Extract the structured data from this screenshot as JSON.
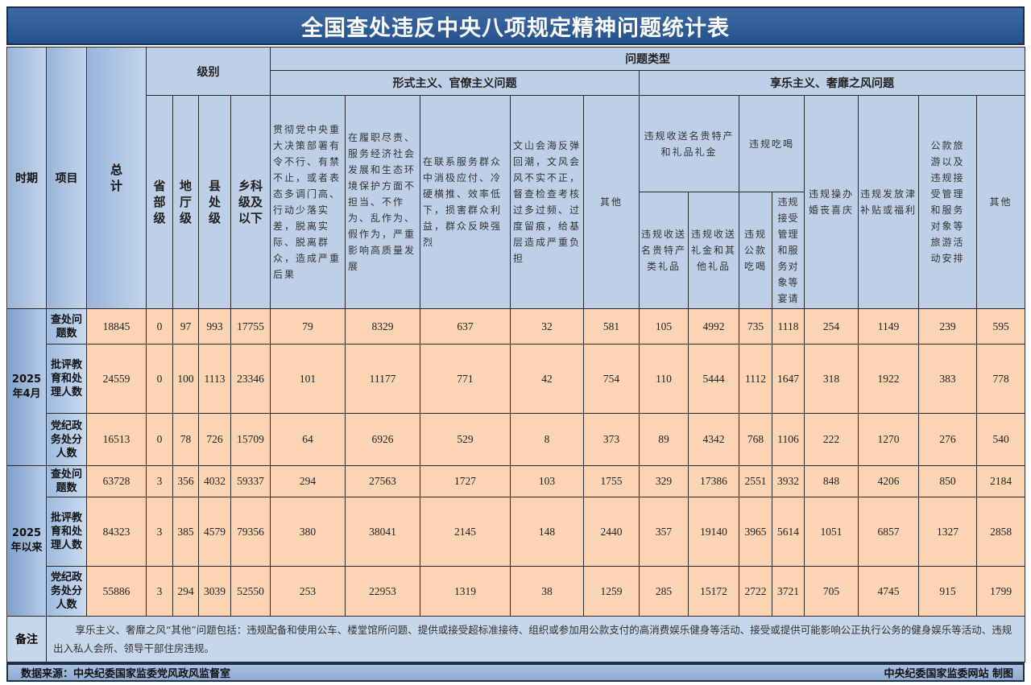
{
  "title": "全国查处违反中央八项规定精神问题统计表",
  "headers": {
    "period": "时期",
    "item": "项目",
    "total": "总计",
    "level": "级别",
    "levels": [
      "省部级",
      "地厅级",
      "县处级",
      "乡科级及以下"
    ],
    "problem_type": "问题类型",
    "formalism": "形式主义、官僚主义问题",
    "formalism_cols": [
      "贯彻党中央重大决策部署有令不行、有禁不止，或者表态多调门高、行动少落实差，脱离实际、脱离群众，造成严重后果",
      "在履职尽责、服务经济社会发展和生态环境保护方面不担当、不作为、乱作为、假作为，严重影响高质量发展",
      "在联系服务群众中消极应付、冷硬横推、效率低下，损害群众利益，群众反映强烈",
      "文山会海反弹回潮，文风会风不实不正，督查检查考核过多过频、过度留痕，给基层造成严重负担",
      "其他"
    ],
    "hedonism": "享乐主义、奢靡之风问题",
    "gifts": "违规收送名贵特产和礼品礼金",
    "gifts_sub": [
      "违规收送名贵特产类礼品",
      "违规收送礼金和其他礼品"
    ],
    "dining": "违规吃喝",
    "dining_sub": [
      "违规公款吃喝",
      "违规接受管理和服务对象等宴请"
    ],
    "hedonism_cols": [
      "违规操办婚丧喜庆",
      "违规发放津补贴或福利",
      "公款旅游以及违规接受管理和服务对象等旅游活动安排",
      "其他"
    ]
  },
  "periods": [
    {
      "label": "2025年4月",
      "rows": [
        {
          "item": "查处问题数",
          "values": [
            "18845",
            "0",
            "97",
            "993",
            "17755",
            "79",
            "8329",
            "637",
            "32",
            "581",
            "105",
            "4992",
            "735",
            "1118",
            "254",
            "1149",
            "239",
            "595"
          ]
        },
        {
          "item": "批评教育和处理人数",
          "values": [
            "24559",
            "0",
            "100",
            "1113",
            "23346",
            "101",
            "11177",
            "771",
            "42",
            "754",
            "110",
            "5444",
            "1112",
            "1647",
            "318",
            "1922",
            "383",
            "778"
          ]
        },
        {
          "item": "党纪政务处分人数",
          "values": [
            "16513",
            "0",
            "78",
            "726",
            "15709",
            "64",
            "6926",
            "529",
            "8",
            "373",
            "89",
            "4342",
            "768",
            "1106",
            "222",
            "1270",
            "276",
            "540"
          ]
        }
      ]
    },
    {
      "label": "2025年以来",
      "rows": [
        {
          "item": "查处问题数",
          "values": [
            "63728",
            "3",
            "356",
            "4032",
            "59337",
            "294",
            "27563",
            "1727",
            "103",
            "1755",
            "329",
            "17386",
            "2551",
            "3932",
            "848",
            "4206",
            "850",
            "2184"
          ]
        },
        {
          "item": "批评教育和处理人数",
          "values": [
            "84323",
            "3",
            "385",
            "4579",
            "79356",
            "380",
            "38041",
            "2145",
            "148",
            "2440",
            "357",
            "19140",
            "3965",
            "5614",
            "1051",
            "6857",
            "1327",
            "2858"
          ]
        },
        {
          "item": "党纪政务处分人数",
          "values": [
            "55886",
            "3",
            "294",
            "3039",
            "52550",
            "253",
            "22953",
            "1319",
            "38",
            "1259",
            "285",
            "15172",
            "2722",
            "3721",
            "705",
            "4745",
            "915",
            "1799"
          ]
        }
      ]
    }
  ],
  "notes": {
    "label": "备注",
    "text": "享乐主义、奢靡之风“其他”问题包括：违规配备和使用公车、楼堂馆所问题、提供或接受超标准接待、组织或参加用公款支付的高消费娱乐健身等活动、接受或提供可能影响公正执行公务的健身娱乐等活动、违规出入私人会所、领导干部住房违规。"
  },
  "footer": {
    "source": "数据来源：中央纪委国家监委党风政风监督室",
    "credit": "中央纪委国家监委网站 制图"
  },
  "colors": {
    "title_bg": "#24528c",
    "header_bg": "#bdd0e8",
    "data_bg": "#fbd4b3"
  }
}
